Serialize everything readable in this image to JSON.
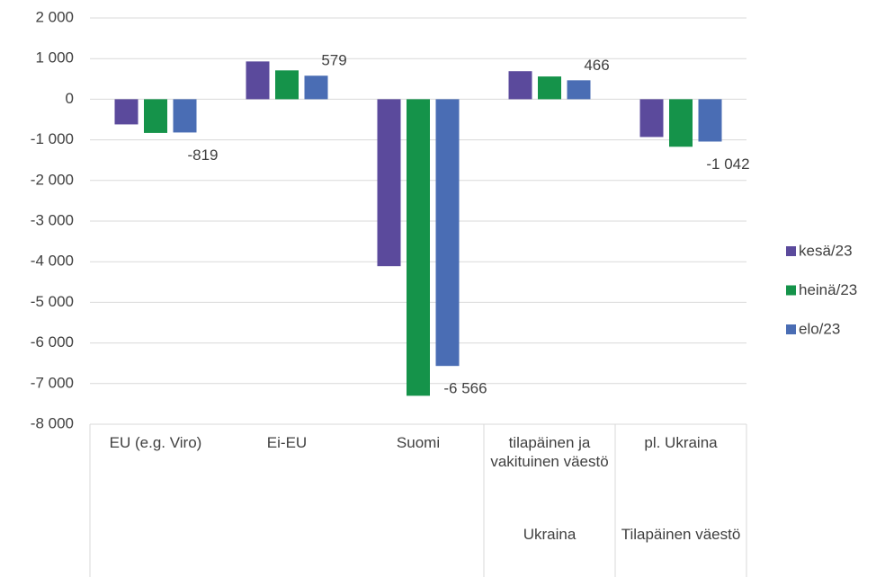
{
  "chart_data": {
    "type": "bar",
    "categories": [
      "EU (e.g. Viro)",
      "Ei-EU",
      "Suomi",
      "tilapäinen ja vakituinen väestö",
      "pl. Ukraina"
    ],
    "category_groups": [
      null,
      null,
      null,
      "Ukraina",
      "Tilapäinen väestö"
    ],
    "series": [
      {
        "name": "kesä/23",
        "color": "#5b4a9c",
        "values": [
          -620,
          930,
          -4110,
          690,
          -930
        ]
      },
      {
        "name": "heinä/23",
        "color": "#15934a",
        "values": [
          -830,
          710,
          -7300,
          560,
          -1170
        ]
      },
      {
        "name": "elo/23",
        "color": "#4a6db4",
        "values": [
          -819,
          579,
          -6566,
          466,
          -1042
        ],
        "value_labels": [
          "-819",
          "579",
          "-6 566",
          "466",
          "-1 042"
        ]
      }
    ],
    "ylim": [
      -8000,
      2000
    ],
    "yticks": [
      {
        "value": -8000,
        "label": "-8 000"
      },
      {
        "value": -7000,
        "label": "-7 000"
      },
      {
        "value": -6000,
        "label": "-6 000"
      },
      {
        "value": -5000,
        "label": "-5 000"
      },
      {
        "value": -4000,
        "label": "-4 000"
      },
      {
        "value": -3000,
        "label": "-3 000"
      },
      {
        "value": -2000,
        "label": "-2 000"
      },
      {
        "value": -1000,
        "label": "-1 000"
      },
      0,
      {
        "value": 1000,
        "label": "1 000"
      },
      {
        "value": 2000,
        "label": "2 000"
      }
    ],
    "grid": true,
    "legend": "right"
  }
}
